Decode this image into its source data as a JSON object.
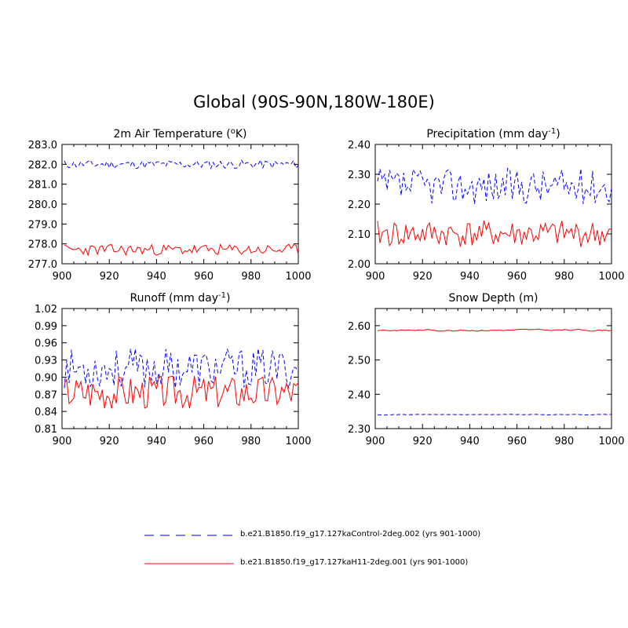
{
  "title": "Global (90S-90N,180W-180E)",
  "colors": {
    "control": "#0000ff",
    "h11": "#ff0000",
    "axis": "#000000"
  },
  "legend": [
    {
      "label": "b.e21.B1850.f19_g17.127kaControl-2deg.002 (yrs 901-1000)",
      "style": "dashed",
      "color": "#0000ff"
    },
    {
      "label": "b.e21.B1850.f19_g17.127kaH11-2deg.001 (yrs 901-1000)",
      "style": "solid",
      "color": "#ff0000"
    }
  ],
  "chart_data": [
    {
      "type": "line",
      "title_main": "2m Air Temperature (",
      "title_sup": "o",
      "title_end": "K)",
      "x": {
        "start": 901,
        "end": 1000
      },
      "xlim": [
        900,
        1000
      ],
      "xticks": [
        900,
        920,
        940,
        960,
        980,
        1000
      ],
      "ylim": [
        277.0,
        283.0
      ],
      "yticks": [
        "277.0",
        "278.0",
        "279.0",
        "280.0",
        "281.0",
        "282.0",
        "283.0"
      ],
      "series": [
        {
          "name": "b.e21.B1850.f19_g17.127kaControl-2deg.002 (yrs 901-1000)",
          "style": "dashed",
          "color": "#0000ff",
          "mean": 282.0,
          "amp": 0.22,
          "seed": 11
        },
        {
          "name": "b.e21.B1850.f19_g17.127kaH11-2deg.001 (yrs 901-1000)",
          "style": "solid",
          "color": "#ff0000",
          "mean": 277.7,
          "amp": 0.28,
          "seed": 23
        }
      ]
    },
    {
      "type": "line",
      "title_main": "Precipitation (mm day",
      "title_sup": "-1",
      "title_end": ")",
      "x": {
        "start": 901,
        "end": 1000
      },
      "xlim": [
        900,
        1000
      ],
      "xticks": [
        900,
        920,
        940,
        960,
        980,
        1000
      ],
      "ylim": [
        2.0,
        2.4
      ],
      "yticks": [
        "2.00",
        "2.10",
        "2.20",
        "2.30",
        "2.40"
      ],
      "series": [
        {
          "name": "b.e21.B1850.f19_g17.127kaControl-2deg.002 (yrs 901-1000)",
          "style": "dashed",
          "color": "#0000ff",
          "mean": 2.26,
          "amp": 0.06,
          "seed": 37
        },
        {
          "name": "b.e21.B1850.f19_g17.127kaH11-2deg.001 (yrs 901-1000)",
          "style": "solid",
          "color": "#ff0000",
          "mean": 2.1,
          "amp": 0.045,
          "seed": 41
        }
      ]
    },
    {
      "type": "line",
      "title_main": "Runoff (mm day",
      "title_sup": "-1",
      "title_end": ")",
      "x": {
        "start": 901,
        "end": 1000
      },
      "xlim": [
        900,
        1000
      ],
      "xticks": [
        900,
        920,
        940,
        960,
        980,
        1000
      ],
      "ylim": [
        0.81,
        1.02
      ],
      "yticks": [
        "0.81",
        "0.84",
        "0.87",
        "0.90",
        "0.93",
        "0.96",
        "0.99",
        "1.02"
      ],
      "series": [
        {
          "name": "b.e21.B1850.f19_g17.127kaControl-2deg.002 (yrs 901-1000)",
          "style": "dashed",
          "color": "#0000ff",
          "mean": 0.915,
          "amp": 0.035,
          "seed": 53
        },
        {
          "name": "b.e21.B1850.f19_g17.127kaH11-2deg.001 (yrs 901-1000)",
          "style": "solid",
          "color": "#ff0000",
          "mean": 0.875,
          "amp": 0.03,
          "seed": 67
        }
      ]
    },
    {
      "type": "line",
      "title_main": "Snow Depth (m)",
      "title_sup": "",
      "title_end": "",
      "x": {
        "start": 901,
        "end": 1000
      },
      "xlim": [
        900,
        1000
      ],
      "xticks": [
        900,
        920,
        940,
        960,
        980,
        1000
      ],
      "ylim": [
        2.3,
        2.65
      ],
      "yticks": [
        "2.30",
        "2.40",
        "2.50",
        "2.60"
      ],
      "series": [
        {
          "name": "b.e21.B1850.f19_g17.127kaControl-2deg.002 (yrs 901-1000)",
          "style": "dashed",
          "color": "#0000ff",
          "mean": 2.341,
          "amp": 0.002,
          "seed": 71,
          "smooth": true
        },
        {
          "name": "b.e21.B1850.f19_g17.127kaH11-2deg.001 (yrs 901-1000)",
          "style": "solid",
          "color": "#ff0000",
          "mean": 2.587,
          "amp": 0.006,
          "seed": 83,
          "smooth": true
        }
      ]
    }
  ]
}
